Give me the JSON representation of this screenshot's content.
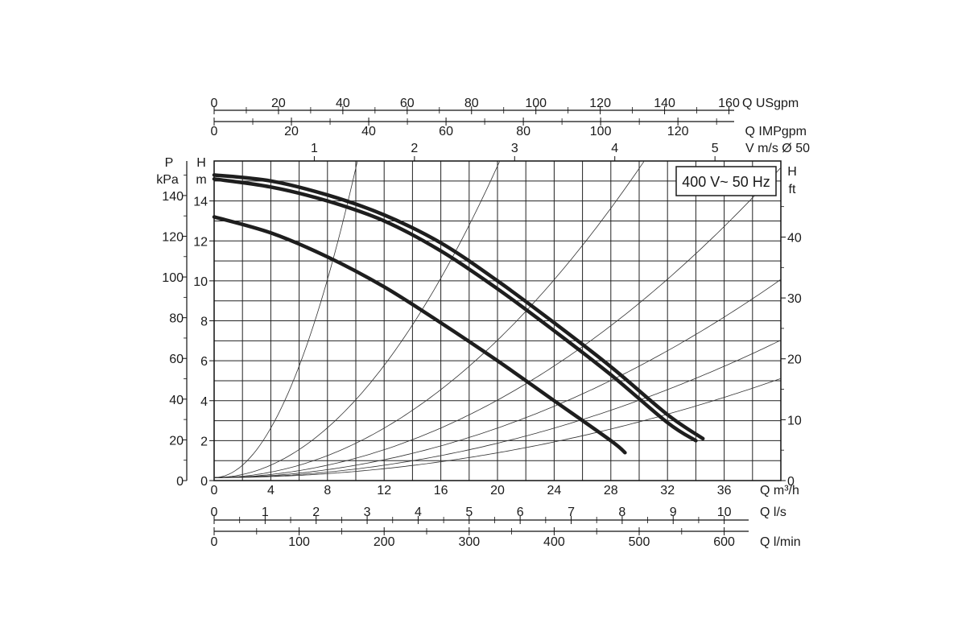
{
  "chart_data": {
    "type": "line",
    "badge": "400 V~ 50 Hz",
    "x_axis": {
      "label": "Q m³/h",
      "range": [
        0,
        40
      ],
      "ticks": [
        0,
        4,
        8,
        12,
        16,
        20,
        24,
        28,
        32,
        36
      ],
      "grid_step": 2
    },
    "y_axis_head_m": {
      "label_top": "H",
      "label_unit": "m",
      "range": [
        0,
        16
      ],
      "ticks": [
        0,
        2,
        4,
        6,
        8,
        10,
        12,
        14
      ]
    },
    "y_axis_pressure_kpa": {
      "label_top": "P",
      "label_unit": "kPa",
      "ticks": [
        0,
        20,
        40,
        60,
        80,
        100,
        120,
        140
      ]
    },
    "y_axis_head_ft": {
      "label_top": "H",
      "label_unit": "ft",
      "ticks": [
        0,
        10,
        20,
        30,
        40
      ]
    },
    "top_axis_usgpm": {
      "label": "Q USgpm",
      "ticks": [
        0,
        20,
        40,
        60,
        80,
        100,
        120,
        140,
        160
      ]
    },
    "top_axis_impgpm": {
      "label": "Q IMPgpm",
      "ticks": [
        0,
        20,
        40,
        60,
        80,
        100,
        120
      ]
    },
    "top_axis_velocity": {
      "label": "V m/s Ø 50",
      "ticks": [
        1,
        2,
        3,
        4,
        5
      ]
    },
    "bottom_axis_ls": {
      "label": "Q l/s",
      "ticks": [
        0,
        1,
        2,
        3,
        4,
        5,
        6,
        7,
        8,
        9,
        10
      ]
    },
    "bottom_axis_lmin": {
      "label": "Q l/min",
      "ticks": [
        0,
        100,
        200,
        300,
        400,
        500,
        600
      ]
    },
    "series": [
      {
        "values": [
          [
            0,
            15.3
          ],
          [
            4,
            15.0
          ],
          [
            8,
            14.3
          ],
          [
            12,
            13.3
          ],
          [
            16,
            11.9
          ],
          [
            20,
            10.0
          ],
          [
            24,
            7.9
          ],
          [
            28,
            5.7
          ],
          [
            32,
            3.3
          ],
          [
            34.5,
            2.1
          ]
        ]
      },
      {
        "values": [
          [
            0,
            15.1
          ],
          [
            4,
            14.7
          ],
          [
            8,
            14.0
          ],
          [
            12,
            13.0
          ],
          [
            16,
            11.5
          ],
          [
            20,
            9.6
          ],
          [
            24,
            7.5
          ],
          [
            28,
            5.3
          ],
          [
            32,
            2.9
          ],
          [
            34,
            2.0
          ]
        ]
      },
      {
        "values": [
          [
            0,
            13.2
          ],
          [
            4,
            12.4
          ],
          [
            8,
            11.2
          ],
          [
            12,
            9.7
          ],
          [
            16,
            7.9
          ],
          [
            20,
            6.0
          ],
          [
            24,
            4.0
          ],
          [
            28,
            2.0
          ],
          [
            29,
            1.4
          ]
        ]
      }
    ],
    "system_curves_m_at_10m3h": [
      15.5,
      3.9,
      1.72,
      0.97,
      0.62,
      0.43,
      0.31
    ],
    "grid": true
  }
}
